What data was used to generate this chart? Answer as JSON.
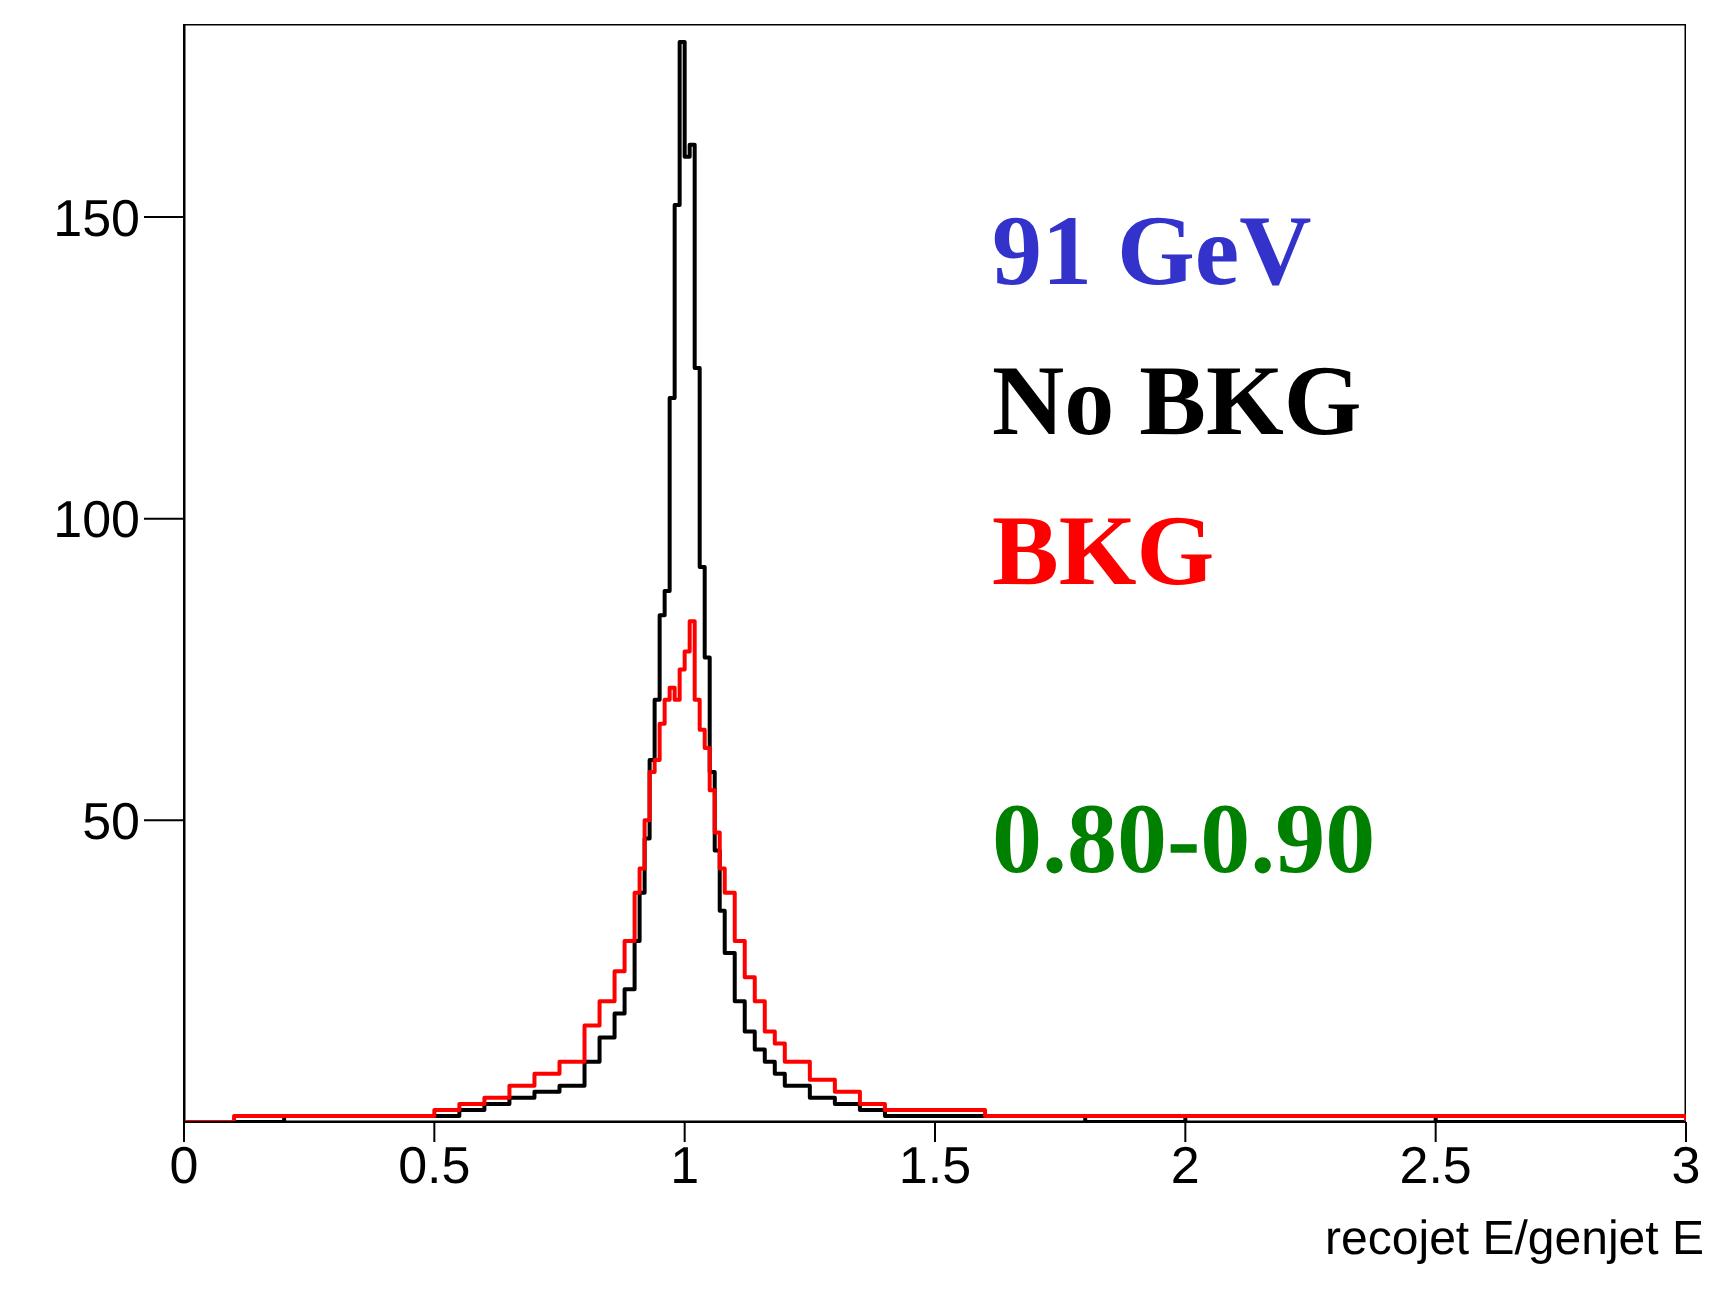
{
  "chart_data": {
    "type": "step",
    "xlabel": "recojet E/genjet E",
    "annotations": [
      "91 GeV",
      "0.80-0.90"
    ],
    "series": [
      {
        "name": "No BKG",
        "color": "#000000",
        "x": [
          0,
          0.1,
          0.2,
          0.3,
          0.4,
          0.5,
          0.55,
          0.6,
          0.65,
          0.7,
          0.75,
          0.8,
          0.83,
          0.86,
          0.88,
          0.9,
          0.91,
          0.92,
          0.93,
          0.94,
          0.95,
          0.96,
          0.97,
          0.98,
          0.99,
          1.0,
          1.01,
          1.02,
          1.03,
          1.04,
          1.05,
          1.06,
          1.07,
          1.08,
          1.1,
          1.12,
          1.14,
          1.16,
          1.18,
          1.2,
          1.25,
          1.3,
          1.35,
          1.4,
          1.5,
          1.6,
          1.8,
          2.0,
          2.5,
          3.0
        ],
        "values": [
          0,
          0,
          1,
          1,
          1,
          1,
          2,
          3,
          4,
          5,
          6,
          10,
          14,
          18,
          22,
          30,
          38,
          47,
          60,
          70,
          84,
          88,
          120,
          152,
          179,
          160,
          162,
          125,
          92,
          77,
          58,
          45,
          35,
          28,
          20,
          15,
          12,
          10,
          8,
          6,
          4,
          3,
          2,
          1,
          1,
          1,
          0,
          1,
          0,
          0
        ]
      },
      {
        "name": "BKG",
        "color": "#ff0000",
        "x": [
          0,
          0.1,
          0.2,
          0.3,
          0.4,
          0.5,
          0.55,
          0.6,
          0.65,
          0.7,
          0.75,
          0.8,
          0.83,
          0.86,
          0.88,
          0.9,
          0.91,
          0.92,
          0.93,
          0.94,
          0.95,
          0.96,
          0.97,
          0.98,
          0.99,
          1.0,
          1.01,
          1.02,
          1.03,
          1.04,
          1.05,
          1.06,
          1.07,
          1.08,
          1.1,
          1.12,
          1.14,
          1.16,
          1.18,
          1.2,
          1.25,
          1.3,
          1.35,
          1.4,
          1.5,
          1.6,
          1.8,
          2.0,
          2.5,
          3.0
        ],
        "values": [
          0,
          1,
          1,
          1,
          1,
          2,
          3,
          4,
          6,
          8,
          10,
          16,
          20,
          25,
          30,
          38,
          42,
          50,
          58,
          60,
          66,
          70,
          72,
          70,
          75,
          78,
          83,
          70,
          65,
          62,
          55,
          48,
          42,
          38,
          30,
          24,
          20,
          15,
          13,
          10,
          7,
          5,
          3,
          2,
          2,
          1,
          1,
          1,
          1,
          0
        ]
      }
    ],
    "xlim": [
      0,
      3
    ],
    "xticks": [
      0,
      0.5,
      1,
      1.5,
      2,
      2.5,
      3
    ],
    "ylim": [
      0,
      182
    ],
    "yticks": [
      50,
      100,
      150
    ],
    "legend": "top right",
    "grid": false
  }
}
